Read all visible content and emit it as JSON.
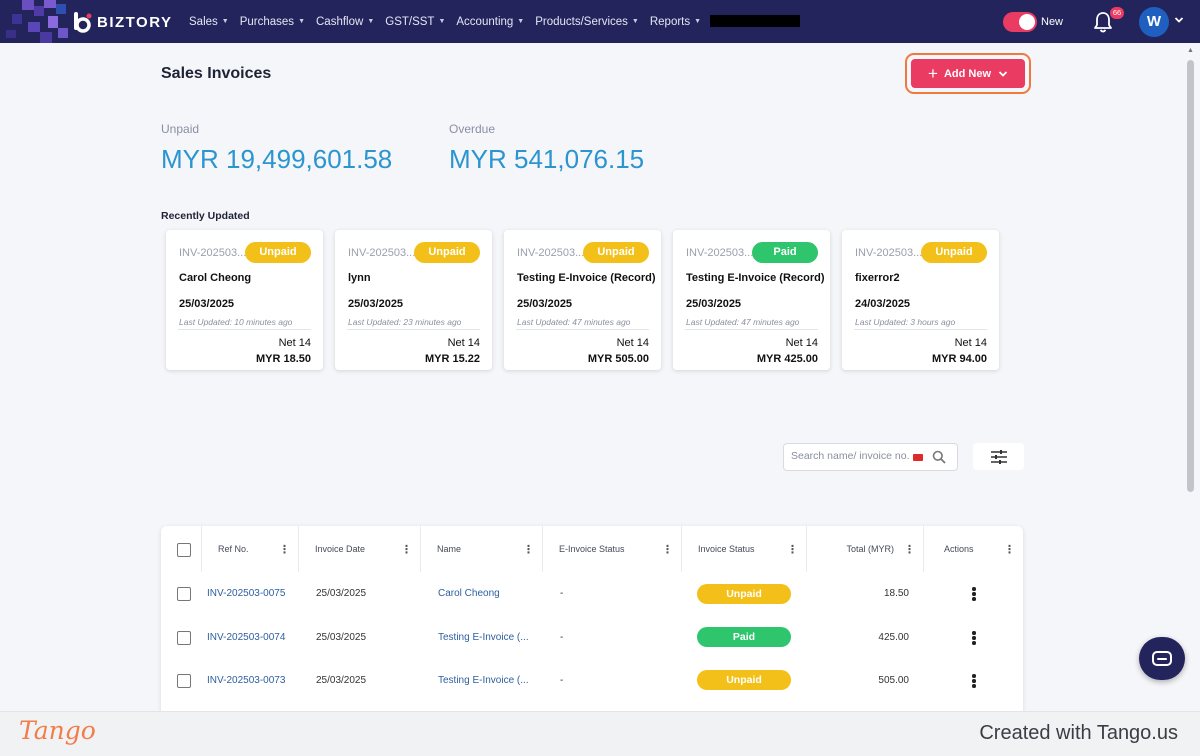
{
  "app": {
    "name": "BIZTORY",
    "toggle_label": "New",
    "notification_count": "66",
    "avatar_initial": "W"
  },
  "nav": [
    {
      "label": "Sales"
    },
    {
      "label": "Purchases"
    },
    {
      "label": "Cashflow"
    },
    {
      "label": "GST/SST"
    },
    {
      "label": "Accounting"
    },
    {
      "label": "Products/Services"
    },
    {
      "label": "Reports"
    }
  ],
  "page": {
    "title": "Sales Invoices",
    "add_new_label": "Add New"
  },
  "summary": {
    "unpaid": {
      "label": "Unpaid",
      "value": "MYR 19,499,601.58"
    },
    "overdue": {
      "label": "Overdue",
      "value": "MYR 541,076.15"
    }
  },
  "recent": {
    "title": "Recently Updated",
    "cards": [
      {
        "ref": "INV-202503...",
        "status": "Unpaid",
        "name": "Carol Cheong",
        "date": "25/03/2025",
        "updated": "Last Updated: 10 minutes ago",
        "terms": "Net 14",
        "amount": "MYR 18.50"
      },
      {
        "ref": "INV-202503...",
        "status": "Unpaid",
        "name": "lynn",
        "date": "25/03/2025",
        "updated": "Last Updated: 23 minutes ago",
        "terms": "Net 14",
        "amount": "MYR 15.22"
      },
      {
        "ref": "INV-202503...",
        "status": "Unpaid",
        "name": "Testing E-Invoice (Record)",
        "date": "25/03/2025",
        "updated": "Last Updated: 47 minutes ago",
        "terms": "Net 14",
        "amount": "MYR 505.00"
      },
      {
        "ref": "INV-202503...",
        "status": "Paid",
        "name": "Testing E-Invoice (Record)",
        "date": "25/03/2025",
        "updated": "Last Updated: 47 minutes ago",
        "terms": "Net 14",
        "amount": "MYR 425.00"
      },
      {
        "ref": "INV-202503...",
        "status": "Unpaid",
        "name": "fixerror2",
        "date": "24/03/2025",
        "updated": "Last Updated: 3 hours ago",
        "terms": "Net 14",
        "amount": "MYR 94.00"
      }
    ]
  },
  "search": {
    "placeholder": "Search name/ invoice no."
  },
  "table": {
    "columns": [
      "Ref No.",
      "Invoice Date",
      "Name",
      "E-Invoice Status",
      "Invoice Status",
      "Total (MYR)",
      "Actions"
    ],
    "rows": [
      {
        "ref": "INV-202503-0075",
        "date": "25/03/2025",
        "name": "Carol Cheong",
        "einvoice": "-",
        "status": "Unpaid",
        "total": "18.50"
      },
      {
        "ref": "INV-202503-0074",
        "date": "25/03/2025",
        "name": "Testing E-Invoice (...",
        "einvoice": "-",
        "status": "Paid",
        "total": "425.00"
      },
      {
        "ref": "INV-202503-0073",
        "date": "25/03/2025",
        "name": "Testing E-Invoice (...",
        "einvoice": "-",
        "status": "Unpaid",
        "total": "505.00"
      }
    ]
  },
  "footer": {
    "brand": "Tango",
    "created": "Created with Tango.us"
  },
  "colors": {
    "nav_bg": "#23245c",
    "accent": "#ea3b63",
    "unpaid": "#f3c01a",
    "paid": "#2ec56c",
    "stat_blue": "#2a95cf",
    "link": "#2d5fa0"
  }
}
